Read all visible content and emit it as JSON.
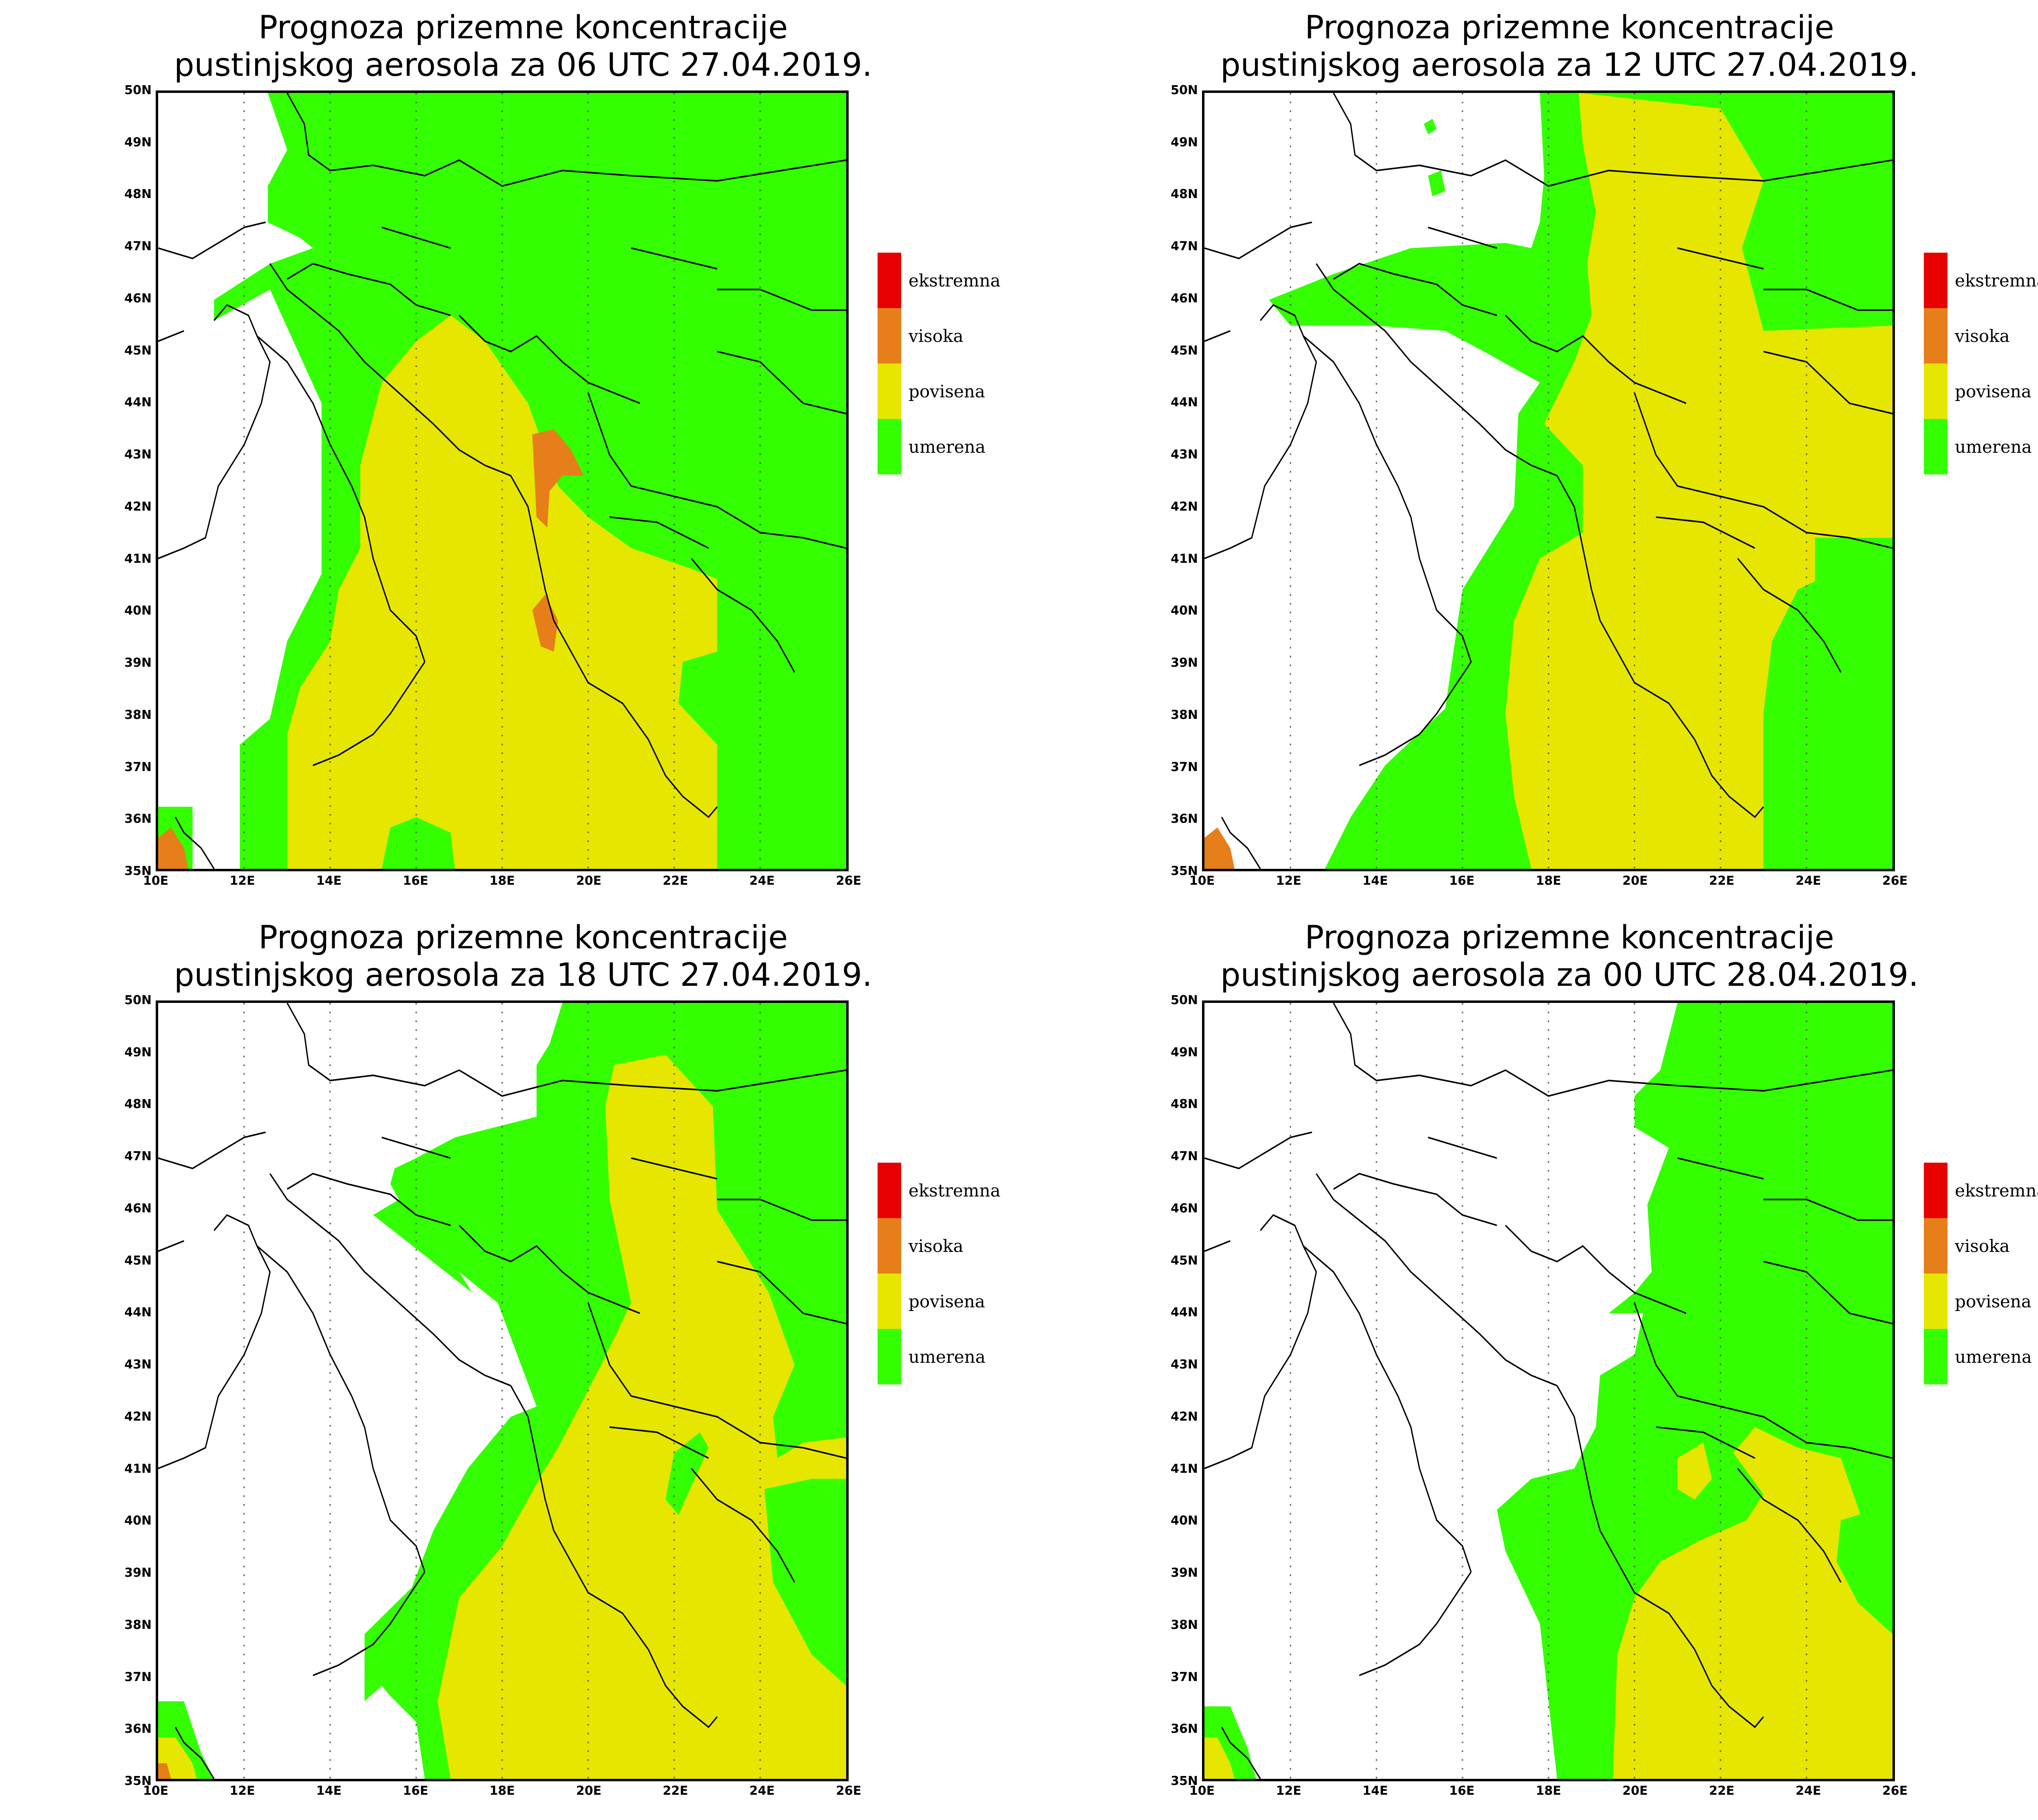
{
  "colors": {
    "ekstremna": "#e60000",
    "visoka": "#e67e1a",
    "povisena": "#e6e600",
    "umerena": "#33ff00",
    "coast": "#000000",
    "grid": "#555555"
  },
  "legend": [
    {
      "key": "ekstremna",
      "label": "ekstremna"
    },
    {
      "key": "visoka",
      "label": "visoka"
    },
    {
      "key": "povisena",
      "label": "povisena"
    },
    {
      "key": "umerena",
      "label": "umerena"
    }
  ],
  "lat_ticks": [
    "50N",
    "49N",
    "48N",
    "47N",
    "46N",
    "45N",
    "44N",
    "43N",
    "42N",
    "41N",
    "40N",
    "39N",
    "38N",
    "37N",
    "36N",
    "35N"
  ],
  "lon_ticks": [
    "10E",
    "12E",
    "14E",
    "16E",
    "18E",
    "20E",
    "22E",
    "24E",
    "26E"
  ],
  "panels": [
    {
      "title_line1": "Prognoza prizemne koncentracije",
      "title_line2": "pustinjskog aerosola za 06 UTC 27.04.2019."
    },
    {
      "title_line1": "Prognoza prizemne koncentracije",
      "title_line2": "pustinjskog aerosola za 12 UTC 27.04.2019."
    },
    {
      "title_line1": "Prognoza prizemne koncentracije",
      "title_line2": "pustinjskog aerosola za 18 UTC 27.04.2019."
    },
    {
      "title_line1": "Prognoza prizemne koncentracije",
      "title_line2": "pustinjskog aerosola za 00 UTC 28.04.2019."
    }
  ]
}
